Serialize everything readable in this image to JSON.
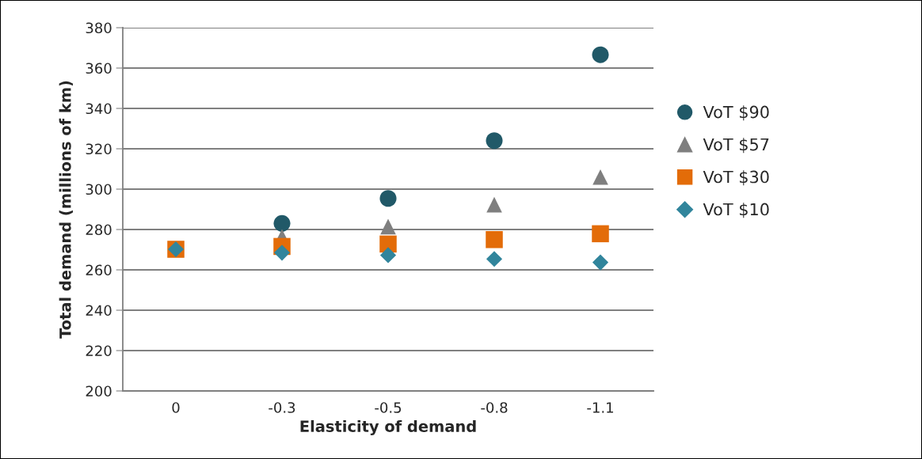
{
  "chart_data": {
    "type": "scatter",
    "xlabel": "Elasticity of demand",
    "ylabel": "Total demand (millions of km)",
    "categories": [
      "0",
      "-0.3",
      "-0.5",
      "-0.8",
      "-1.1"
    ],
    "series": [
      {
        "name": "VoT $90",
        "color": "#215968",
        "marker": "circle",
        "values": [
          null,
          283.0,
          295.4,
          324.0,
          366.6
        ]
      },
      {
        "name": "VoT $57",
        "color": "#7f7f7f",
        "marker": "triangle",
        "values": [
          null,
          276.3,
          281.4,
          292.3,
          306.0
        ]
      },
      {
        "name": "VoT $30",
        "color": "#e36c09",
        "marker": "square",
        "values": [
          270.2,
          271.6,
          272.8,
          275.0,
          277.9
        ]
      },
      {
        "name": "VoT $10",
        "color": "#31859c",
        "marker": "diamond",
        "values": [
          270.2,
          268.5,
          267.3,
          265.4,
          263.7
        ]
      }
    ],
    "ylim": [
      200,
      380
    ],
    "yticks": [
      200,
      220,
      240,
      260,
      280,
      300,
      320,
      340,
      360,
      380
    ],
    "grid": "y",
    "legend": "right"
  }
}
